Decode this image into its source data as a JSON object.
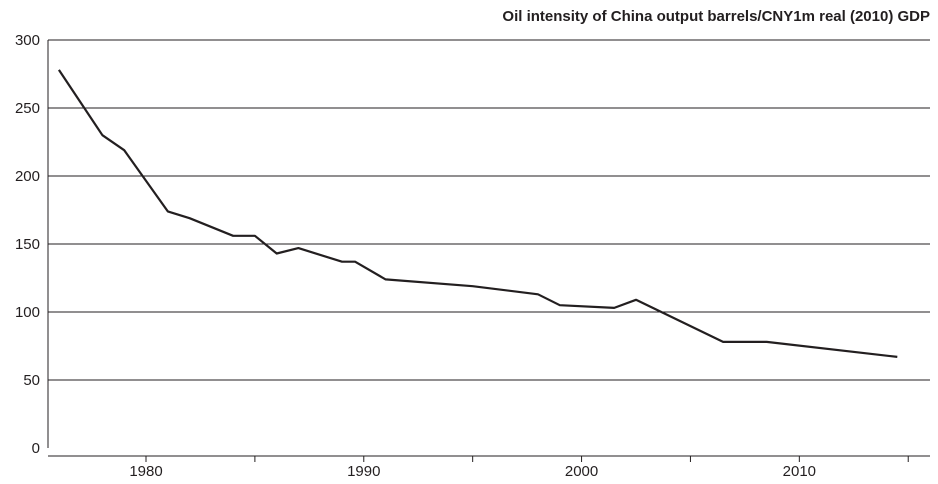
{
  "chart_data": {
    "type": "line",
    "title": "Oil intensity of China output barrels/CNY1m real (2010) GDP",
    "xlabel": "",
    "ylabel": "",
    "xlim": [
      1975.5,
      2016
    ],
    "ylim": [
      0,
      300
    ],
    "x_ticks": [
      1980,
      1990,
      2000,
      2010
    ],
    "y_ticks": [
      0,
      50,
      100,
      150,
      200,
      250,
      300
    ],
    "grid": "horizontal",
    "line_color": "#231f20",
    "series": [
      {
        "x": [
          1976,
          1978,
          1979,
          1981,
          1982,
          1984,
          1985,
          1986,
          1987,
          1989,
          1989.6,
          1991,
          1995,
          1998,
          1999,
          2001.5,
          2002.5,
          2006.5,
          2008.5,
          2014.5
        ],
        "values": [
          278,
          230,
          219,
          174,
          169,
          156,
          156,
          143,
          147,
          137,
          137,
          124,
          119,
          113,
          105,
          103,
          109,
          78,
          78,
          67
        ]
      }
    ]
  }
}
